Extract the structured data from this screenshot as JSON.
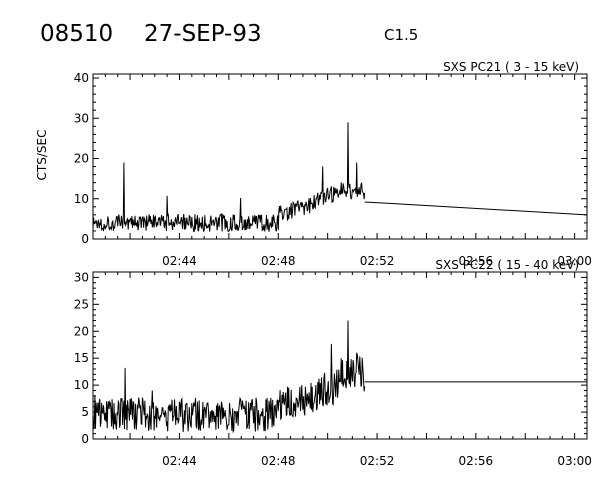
{
  "header": {
    "event_id": "08510",
    "date": "27-SEP-93",
    "goes_class": "C1.5"
  },
  "chart_data": [
    {
      "type": "line",
      "title": "SXS PC21  (  3 - 15 keV)",
      "ylabel": "CTS/SEC",
      "xlim": [
        "02:40:30",
        "03:00:30"
      ],
      "ylim": [
        0,
        41
      ],
      "yticks": [
        0,
        10,
        20,
        30,
        40
      ],
      "xticks": [
        "02:44",
        "02:48",
        "02:52",
        "02:56",
        "03:00"
      ],
      "noise_level": 4,
      "noise_amplitude": 2.2,
      "key_points": [
        {
          "x": "02:40:30",
          "y": 4
        },
        {
          "x": "02:41:45",
          "y": 19
        },
        {
          "x": "02:48:00",
          "y": 6
        },
        {
          "x": "02:49:30",
          "y": 9
        },
        {
          "x": "02:50:30",
          "y": 12
        },
        {
          "x": "02:50:50",
          "y": 29
        },
        {
          "x": "02:51:10",
          "y": 19
        },
        {
          "x": "02:51:30",
          "y": 10
        },
        {
          "x": "03:00:30",
          "y": 6
        }
      ],
      "interpolated_segment": [
        {
          "x": "02:51:30",
          "y": 9.2
        },
        {
          "x": "03:00:30",
          "y": 6.0
        }
      ]
    },
    {
      "type": "line",
      "title": "SXS PC22  ( 15 - 40 keV)",
      "ylabel": "",
      "xlim": [
        "02:40:30",
        "03:00:30"
      ],
      "ylim": [
        0,
        31
      ],
      "yticks": [
        0,
        5,
        10,
        15,
        20,
        25,
        30
      ],
      "xticks": [
        "02:44",
        "02:48",
        "02:52",
        "02:56",
        "03:00"
      ],
      "noise_level": 4.5,
      "noise_amplitude": 3.2,
      "key_points": [
        {
          "x": "02:40:30",
          "y": 4
        },
        {
          "x": "02:48:00",
          "y": 6
        },
        {
          "x": "02:49:30",
          "y": 8
        },
        {
          "x": "02:50:30",
          "y": 10
        },
        {
          "x": "02:50:50",
          "y": 22
        },
        {
          "x": "02:51:10",
          "y": 16
        },
        {
          "x": "02:51:30",
          "y": 10.5
        },
        {
          "x": "03:00:30",
          "y": 10.5
        }
      ],
      "interpolated_segment": [
        {
          "x": "02:51:30",
          "y": 10.6
        },
        {
          "x": "03:00:30",
          "y": 10.6
        }
      ]
    }
  ]
}
